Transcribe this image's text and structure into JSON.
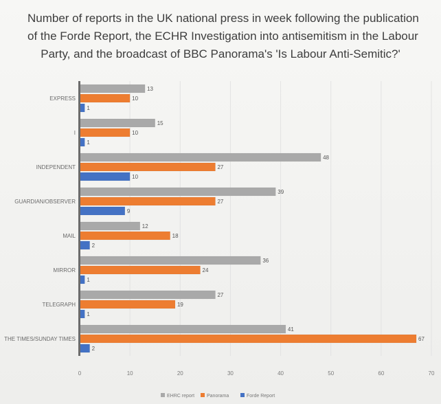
{
  "chart_data": {
    "type": "bar",
    "orientation": "horizontal",
    "title": "Number of reports in the UK national press in week following the publication of the Forde Report, the ECHR Investigation into antisemitism in the Labour Party, and the broadcast of BBC Panorama's 'Is Labour Anti-Semitic?'",
    "title_lines": [
      "Number of reports in the UK national press in week following the publication",
      "of the Forde Report, the ECHR Investigation into antisemitism in the Labour",
      "Party, and the broadcast of BBC Panorama's 'Is Labour Anti-Semitic?'"
    ],
    "categories": [
      "EXPRESS",
      "I",
      "INDEPENDENT",
      "GUARDIAN/OBSERVER",
      "MAIL",
      "MIRROR",
      "TELEGRAPH",
      "THE TIMES/SUNDAY TIMES"
    ],
    "series": [
      {
        "name": "EHRC report",
        "color": "#a9a9a9",
        "values": [
          13,
          15,
          48,
          39,
          12,
          36,
          27,
          41
        ]
      },
      {
        "name": "Panorama",
        "color": "#ed7d31",
        "values": [
          10,
          10,
          27,
          27,
          18,
          24,
          19,
          67
        ]
      },
      {
        "name": "Forde Report",
        "color": "#4472c4",
        "values": [
          1,
          1,
          10,
          9,
          2,
          1,
          1,
          2
        ]
      }
    ],
    "xlim": [
      0,
      70
    ],
    "xticks": [
      0,
      10,
      20,
      30,
      40,
      50,
      60,
      70
    ],
    "grid": true,
    "legend": "bottom"
  }
}
